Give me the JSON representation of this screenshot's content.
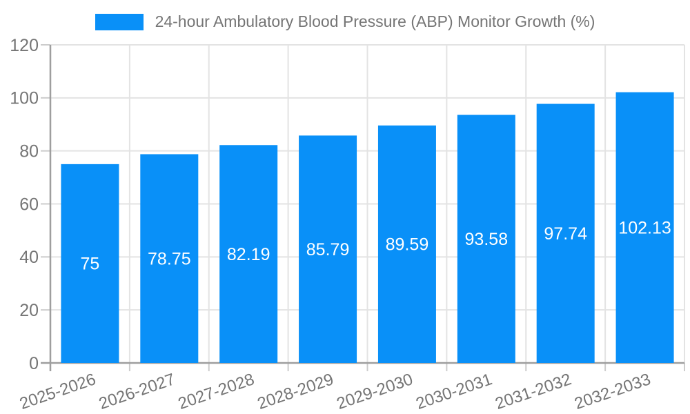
{
  "chart_data": {
    "type": "bar",
    "title": "",
    "legend": {
      "label": "24-hour Ambulatory Blood Pressure (ABP) Monitor Growth (%)",
      "position": "top-center"
    },
    "categories": [
      "2025-2026",
      "2026-2027",
      "2027-2028",
      "2028-2029",
      "2029-2030",
      "2030-2031",
      "2031-2032",
      "2032-2033"
    ],
    "values": [
      75,
      78.75,
      82.19,
      85.79,
      89.59,
      93.58,
      97.74,
      102.13
    ],
    "xlabel": "",
    "ylabel": "",
    "ylim": [
      0,
      120
    ],
    "yticks": [
      0,
      20,
      40,
      60,
      80,
      100,
      120
    ],
    "grid": true,
    "value_labels_inside_bars": true,
    "x_label_rotation_deg": -19,
    "colors": {
      "bar": "#0990F8",
      "axis_text": "#757575",
      "value_label": "#ffffff",
      "gridline": "#e3e3e3",
      "tick": "#cccccc",
      "axis_line": "#9e9e9e",
      "background": "#ffffff"
    }
  }
}
